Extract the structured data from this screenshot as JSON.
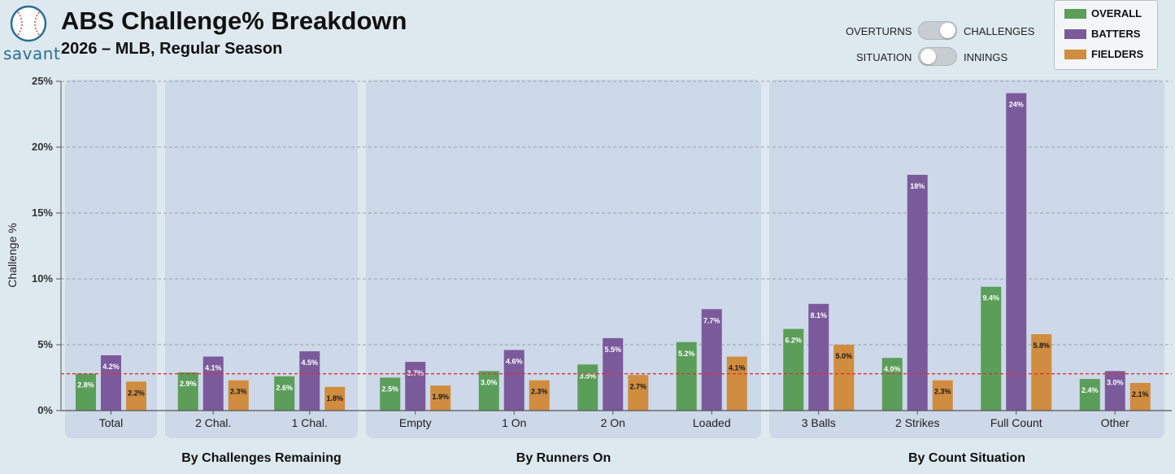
{
  "header": {
    "logo_text": "savant",
    "title": "ABS Challenge% Breakdown",
    "subtitle": "2026 – MLB, Regular Season"
  },
  "toggles": [
    {
      "left_label": "OVERTURNS",
      "right_label": "CHALLENGES",
      "state": "right"
    },
    {
      "left_label": "SITUATION",
      "right_label": "INNINGS",
      "state": "left"
    }
  ],
  "colors": {
    "overall": "#5a9e5a",
    "batters": "#7b5a9c",
    "fielders": "#d08c3f",
    "panel": "#cdd8e8",
    "reference_line": "#dd3333",
    "background": "#dde9ee"
  },
  "chart_data": {
    "type": "bar",
    "ylabel": "Challenge %",
    "ylim": [
      0,
      25
    ],
    "yticks": [
      "0%",
      "5%",
      "10%",
      "15%",
      "20%",
      "25%"
    ],
    "ytick_values": [
      0,
      5,
      10,
      15,
      20,
      25
    ],
    "grid": true,
    "reference_line": 2.8,
    "legend_position": "top-right",
    "series": [
      {
        "name": "OVERALL",
        "color": "#5a9e5a"
      },
      {
        "name": "BATTERS",
        "color": "#7b5a9c"
      },
      {
        "name": "FIELDERS",
        "color": "#d08c3f"
      }
    ],
    "groups": [
      {
        "name": "",
        "categories": [
          {
            "label": "Total",
            "values": [
              2.8,
              4.2,
              2.2
            ],
            "labels": [
              "2.8%",
              "4.2%",
              "2.2%"
            ]
          }
        ]
      },
      {
        "name": "By Challenges Remaining",
        "categories": [
          {
            "label": "2 Chal.",
            "values": [
              2.9,
              4.1,
              2.3
            ],
            "labels": [
              "2.9%",
              "4.1%",
              "2.3%"
            ]
          },
          {
            "label": "1 Chal.",
            "values": [
              2.6,
              4.5,
              1.8
            ],
            "labels": [
              "2.6%",
              "4.5%",
              "1.8%"
            ]
          }
        ]
      },
      {
        "name": "By Runners On",
        "categories": [
          {
            "label": "Empty",
            "values": [
              2.5,
              3.7,
              1.9
            ],
            "labels": [
              "2.5%",
              "3.7%",
              "1.9%"
            ]
          },
          {
            "label": "1 On",
            "values": [
              3.0,
              4.6,
              2.3
            ],
            "labels": [
              "3.0%",
              "4.6%",
              "2.3%"
            ]
          },
          {
            "label": "2 On",
            "values": [
              3.5,
              5.5,
              2.7
            ],
            "labels": [
              "3.5%",
              "5.5%",
              "2.7%"
            ]
          },
          {
            "label": "Loaded",
            "values": [
              5.2,
              7.7,
              4.1
            ],
            "labels": [
              "5.2%",
              "7.7%",
              "4.1%"
            ]
          }
        ]
      },
      {
        "name": "By Count Situation",
        "categories": [
          {
            "label": "3 Balls",
            "values": [
              6.2,
              8.1,
              5.0
            ],
            "labels": [
              "6.2%",
              "8.1%",
              "5.0%"
            ]
          },
          {
            "label": "2 Strikes",
            "values": [
              4.0,
              17.9,
              2.3
            ],
            "labels": [
              "4.0%",
              "18%",
              "2.3%"
            ]
          },
          {
            "label": "Full Count",
            "values": [
              9.4,
              24.1,
              5.8
            ],
            "labels": [
              "9.4%",
              "24%",
              "5.8%"
            ]
          },
          {
            "label": "Other",
            "values": [
              2.4,
              3.0,
              2.1
            ],
            "labels": [
              "2.4%",
              "3.0%",
              "2.1%"
            ]
          }
        ]
      }
    ]
  }
}
